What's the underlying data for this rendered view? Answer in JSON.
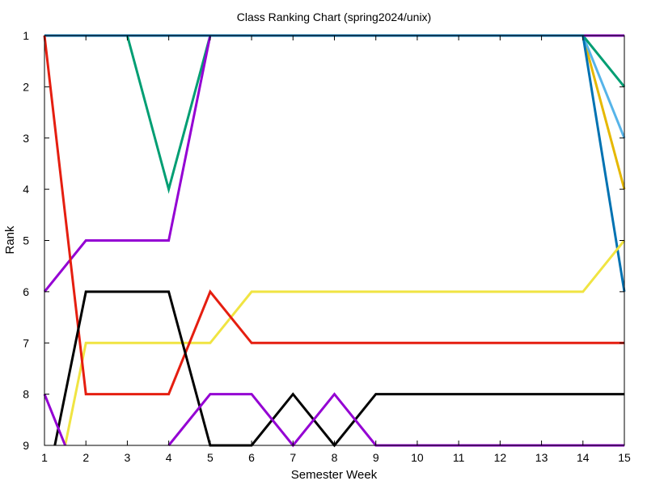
{
  "chart_data": {
    "type": "line",
    "title": "Class Ranking Chart (spring2024/unix)",
    "xlabel": "Semester Week",
    "ylabel": "Rank",
    "xlim": [
      1,
      15
    ],
    "ylim": [
      1,
      9
    ],
    "y_inverted": true,
    "grid": false,
    "legend": "none",
    "x_ticks": [
      "1",
      "2",
      "3",
      "4",
      "5",
      "6",
      "7",
      "8",
      "9",
      "10",
      "11",
      "12",
      "13",
      "14",
      "15"
    ],
    "y_ticks": [
      "1",
      "2",
      "3",
      "4",
      "5",
      "6",
      "7",
      "8",
      "9"
    ],
    "series": [
      {
        "color": "#e6b800",
        "points": [
          [
            1,
            1
          ],
          [
            2,
            1
          ],
          [
            3,
            1
          ],
          [
            4,
            1
          ],
          [
            5,
            1
          ],
          [
            6,
            1
          ],
          [
            7,
            1
          ],
          [
            8,
            1
          ],
          [
            9,
            1
          ],
          [
            10,
            1
          ],
          [
            11,
            1
          ],
          [
            12,
            1
          ],
          [
            13,
            1
          ],
          [
            14,
            1
          ],
          [
            15,
            4
          ]
        ]
      },
      {
        "color": "#56b4e9",
        "points": [
          [
            1,
            1
          ],
          [
            2,
            1
          ],
          [
            3,
            1
          ],
          [
            4,
            1
          ],
          [
            5,
            1
          ],
          [
            6,
            1
          ],
          [
            7,
            1
          ],
          [
            8,
            1
          ],
          [
            9,
            1
          ],
          [
            10,
            1
          ],
          [
            11,
            1
          ],
          [
            12,
            1
          ],
          [
            13,
            1
          ],
          [
            14,
            1
          ],
          [
            15,
            3
          ]
        ]
      },
      {
        "color": "#009e73",
        "points": [
          [
            1,
            1
          ],
          [
            2,
            1
          ],
          [
            3,
            1
          ],
          [
            4,
            4
          ],
          [
            5,
            1
          ],
          [
            6,
            1
          ],
          [
            7,
            1
          ],
          [
            8,
            1
          ],
          [
            9,
            1
          ],
          [
            10,
            1
          ],
          [
            11,
            1
          ],
          [
            12,
            1
          ],
          [
            13,
            1
          ],
          [
            14,
            1
          ],
          [
            15,
            2
          ]
        ]
      },
      {
        "color": "#9400d3",
        "points": [
          [
            1,
            6
          ],
          [
            2,
            5
          ],
          [
            3,
            5
          ],
          [
            4,
            5
          ],
          [
            5,
            1
          ],
          [
            6,
            1
          ],
          [
            7,
            1
          ],
          [
            8,
            1
          ],
          [
            9,
            1
          ],
          [
            10,
            1
          ],
          [
            11,
            1
          ],
          [
            12,
            1
          ],
          [
            13,
            1
          ],
          [
            14,
            1
          ],
          [
            15,
            1
          ]
        ]
      },
      {
        "color": "#0072b2",
        "points": [
          [
            1,
            1
          ],
          [
            2,
            1
          ],
          [
            3,
            1
          ],
          [
            4,
            1
          ],
          [
            5,
            1
          ],
          [
            6,
            1
          ],
          [
            7,
            1
          ],
          [
            8,
            1
          ],
          [
            9,
            1
          ],
          [
            10,
            1
          ],
          [
            11,
            1
          ],
          [
            12,
            1
          ],
          [
            13,
            1
          ],
          [
            14,
            1
          ],
          [
            15,
            6
          ]
        ]
      },
      {
        "color": "#f0e442",
        "points": [
          [
            1.5,
            9
          ],
          [
            2,
            7
          ],
          [
            3,
            7
          ],
          [
            4,
            7
          ],
          [
            5,
            7
          ],
          [
            6,
            6
          ],
          [
            7,
            6
          ],
          [
            8,
            6
          ],
          [
            9,
            6
          ],
          [
            10,
            6
          ],
          [
            11,
            6
          ],
          [
            12,
            6
          ],
          [
            13,
            6
          ],
          [
            14,
            6
          ],
          [
            15,
            5
          ]
        ]
      },
      {
        "color": "#e51e10",
        "points": [
          [
            1,
            1
          ],
          [
            2,
            8
          ],
          [
            3,
            8
          ],
          [
            4,
            8
          ],
          [
            5,
            6
          ],
          [
            6,
            7
          ],
          [
            7,
            7
          ],
          [
            8,
            7
          ],
          [
            9,
            7
          ],
          [
            10,
            7
          ],
          [
            11,
            7
          ],
          [
            12,
            7
          ],
          [
            13,
            7
          ],
          [
            14,
            7
          ],
          [
            15,
            7
          ]
        ]
      },
      {
        "color": "#000000",
        "points": [
          [
            1.25,
            9
          ],
          [
            2,
            6
          ],
          [
            3,
            6
          ],
          [
            4,
            6
          ],
          [
            5,
            9
          ],
          [
            6,
            9
          ],
          [
            7,
            8
          ],
          [
            8,
            9
          ],
          [
            9,
            8
          ],
          [
            10,
            8
          ],
          [
            11,
            8
          ],
          [
            12,
            8
          ],
          [
            13,
            8
          ],
          [
            14,
            8
          ],
          [
            15,
            8
          ]
        ]
      },
      {
        "color": "#9400d3",
        "points": [
          [
            1,
            8
          ],
          [
            1.5,
            9
          ]
        ]
      },
      {
        "color": "#9400d3",
        "points": [
          [
            4,
            9
          ],
          [
            5,
            8
          ],
          [
            6,
            8
          ],
          [
            7,
            9
          ],
          [
            8,
            8
          ],
          [
            9,
            9
          ],
          [
            10,
            9
          ],
          [
            11,
            9
          ],
          [
            12,
            9
          ],
          [
            13,
            9
          ],
          [
            14,
            9
          ],
          [
            15,
            9
          ]
        ]
      }
    ]
  }
}
